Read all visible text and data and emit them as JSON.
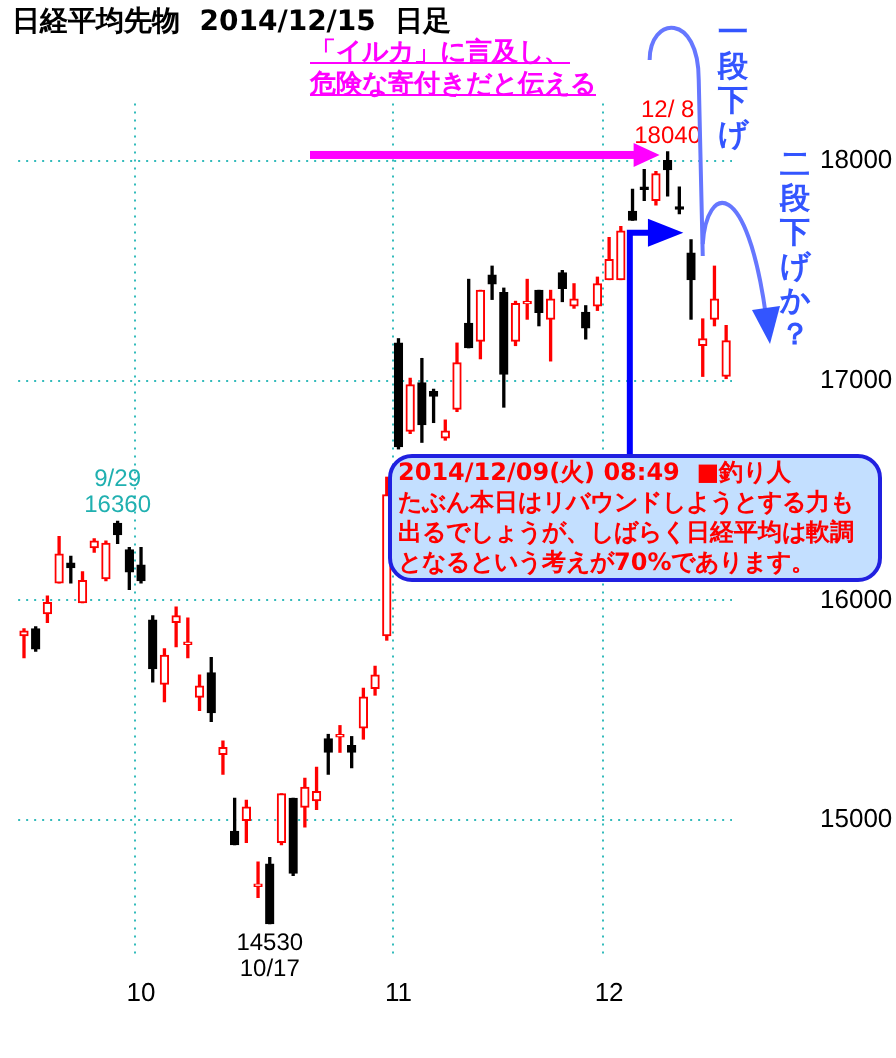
{
  "chart_data": {
    "type": "candlestick",
    "title": "日経平均先物  2014/12/15  日足",
    "categories": [
      null,
      null,
      null,
      null,
      null,
      null,
      null,
      null,
      null,
      null,
      "10",
      null,
      null,
      null,
      null,
      null,
      null,
      null,
      null,
      null,
      null,
      null,
      null,
      null,
      null,
      null,
      null,
      null,
      null,
      null,
      null,
      null,
      "11",
      null,
      null,
      null,
      null,
      null,
      null,
      null,
      null,
      null,
      null,
      null,
      null,
      null,
      null,
      null,
      null,
      null,
      "12",
      null,
      null,
      null,
      null,
      null,
      null,
      null,
      null,
      null,
      null
    ],
    "ohlc": [
      [
        15840,
        15870,
        15740,
        15860
      ],
      [
        15870,
        15880,
        15770,
        15780
      ],
      [
        15940,
        16020,
        15900,
        15990
      ],
      [
        16080,
        16290,
        16080,
        16210
      ],
      [
        16170,
        16200,
        16080,
        16150
      ],
      [
        15990,
        16130,
        15990,
        16090
      ],
      [
        16240,
        16280,
        16220,
        16270
      ],
      [
        16100,
        16270,
        16090,
        16260
      ],
      [
        16350,
        16360,
        16260,
        16300
      ],
      [
        16230,
        16240,
        16050,
        16130
      ],
      [
        16160,
        16240,
        16080,
        16090
      ],
      [
        15910,
        15930,
        15630,
        15690
      ],
      [
        15620,
        15780,
        15540,
        15750
      ],
      [
        15900,
        15970,
        15790,
        15930
      ],
      [
        15800,
        15920,
        15740,
        15810
      ],
      [
        15560,
        15660,
        15500,
        15610
      ],
      [
        15670,
        15740,
        15450,
        15490
      ],
      [
        15300,
        15360,
        15210,
        15330
      ],
      [
        14950,
        15100,
        14890,
        14890
      ],
      [
        15000,
        15090,
        14900,
        15060
      ],
      [
        14700,
        14810,
        14650,
        14710
      ],
      [
        14800,
        14830,
        14530,
        14530
      ],
      [
        14900,
        15120,
        14890,
        15120
      ],
      [
        15100,
        15100,
        14750,
        14760
      ],
      [
        15060,
        15190,
        14970,
        15150
      ],
      [
        15090,
        15240,
        15050,
        15130
      ],
      [
        15370,
        15390,
        15210,
        15310
      ],
      [
        15380,
        15430,
        15310,
        15390
      ],
      [
        15340,
        15380,
        15240,
        15310
      ],
      [
        15420,
        15600,
        15370,
        15560
      ],
      [
        15600,
        15700,
        15570,
        15660
      ],
      [
        15840,
        16560,
        15820,
        16480
      ],
      [
        17170,
        17190,
        16690,
        16700
      ],
      [
        16770,
        17010,
        16760,
        16980
      ],
      [
        16990,
        17100,
        16720,
        16800
      ],
      [
        16950,
        16960,
        16810,
        16930
      ],
      [
        16740,
        16820,
        16730,
        16770
      ],
      [
        16870,
        17170,
        16860,
        17080
      ],
      [
        17260,
        17460,
        17150,
        17150
      ],
      [
        17180,
        17410,
        17100,
        17410
      ],
      [
        17480,
        17520,
        17370,
        17440
      ],
      [
        17400,
        17420,
        16880,
        17030
      ],
      [
        17180,
        17360,
        17160,
        17350
      ],
      [
        17350,
        17460,
        17280,
        17360
      ],
      [
        17410,
        17410,
        17250,
        17310
      ],
      [
        17280,
        17410,
        17090,
        17370
      ],
      [
        17490,
        17500,
        17360,
        17420
      ],
      [
        17340,
        17440,
        17330,
        17370
      ],
      [
        17310,
        17340,
        17190,
        17240
      ],
      [
        17340,
        17470,
        17320,
        17440
      ],
      [
        17460,
        17650,
        17460,
        17550
      ],
      [
        17460,
        17700,
        17460,
        17680
      ],
      [
        17770,
        17870,
        17730,
        17730
      ],
      [
        17880,
        17960,
        17820,
        17870
      ],
      [
        17820,
        17950,
        17800,
        17940
      ],
      [
        18000,
        18040,
        17840,
        17960
      ],
      [
        17790,
        17880,
        17760,
        17780
      ],
      [
        17580,
        17640,
        17280,
        17460
      ],
      [
        17160,
        17280,
        17020,
        17190
      ],
      [
        17280,
        17520,
        17250,
        17370
      ],
      [
        17020,
        17250,
        17010,
        17180
      ]
    ],
    "colors": [
      "#ff0000",
      "#000000",
      "#ff0000",
      "#ff0000",
      "#000000",
      "#ff0000",
      "#ff0000",
      "#ff0000",
      "#000000",
      "#000000",
      "#000000",
      "#000000",
      "#ff0000",
      "#ff0000",
      "#ff0000",
      "#ff0000",
      "#000000",
      "#ff0000",
      "#000000",
      "#ff0000",
      "#ff0000",
      "#000000",
      "#ff0000",
      "#000000",
      "#ff0000",
      "#ff0000",
      "#000000",
      "#ff0000",
      "#000000",
      "#ff0000",
      "#ff0000",
      "#ff0000",
      "#000000",
      "#ff0000",
      "#000000",
      "#000000",
      "#ff0000",
      "#ff0000",
      "#000000",
      "#ff0000",
      "#000000",
      "#000000",
      "#ff0000",
      "#ff0000",
      "#000000",
      "#ff0000",
      "#000000",
      "#ff0000",
      "#000000",
      "#ff0000",
      "#ff0000",
      "#ff0000",
      "#000000",
      "#000000",
      "#ff0000",
      "#000000",
      "#000000",
      "#000000",
      "#ff0000",
      "#ff0000",
      "#ff0000"
    ],
    "ylim": [
      14390,
      18260
    ],
    "yticks": [
      15000,
      16000,
      17000,
      18000
    ],
    "grid": true,
    "annotations": [
      {
        "text": "9/29\n16360",
        "y": 16360
      },
      {
        "text": "14530\n10/17",
        "y": 14530
      },
      {
        "text": "12/ 8\n18040",
        "y": 18040
      },
      "「イルカ」に言及し、",
      "危険な寄付きだと伝える",
      "2014/12/09(火) 08:49  ■釣り人",
      "たぶん本日はリバウンドしようとする力も",
      "出るでしょうが、しばらく日経平均は軟調",
      "となるという考えが70%であります。",
      "一段下げ",
      "二段下げか？"
    ]
  }
}
